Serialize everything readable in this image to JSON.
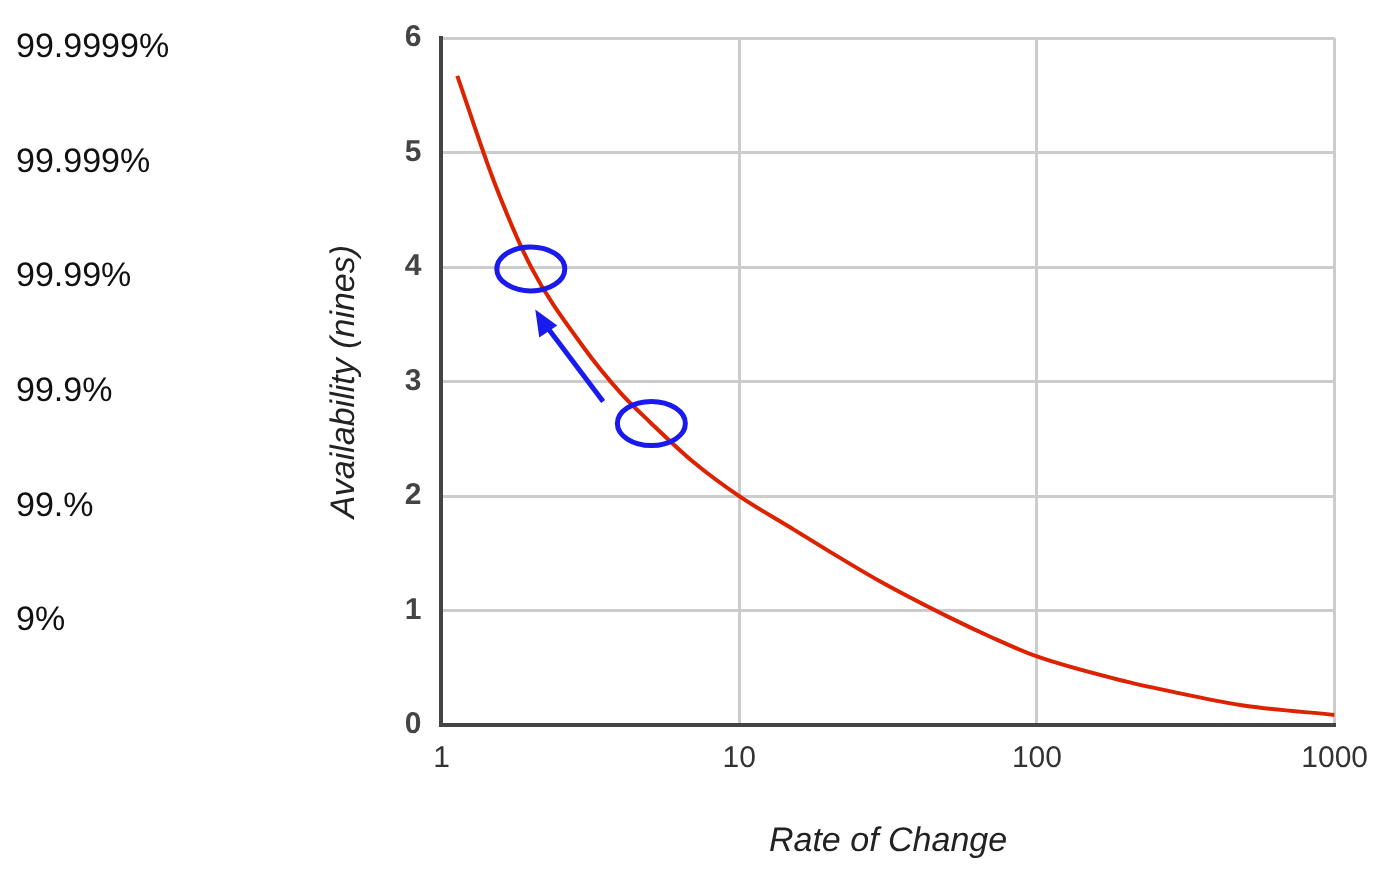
{
  "chart_data": {
    "type": "line",
    "xlabel": "Rate of Change",
    "ylabel": "Availability (nines)",
    "x": [
      1.13,
      1.5,
      2,
      3,
      4,
      5,
      7,
      10,
      15,
      20,
      30,
      50,
      70,
      100,
      200,
      300,
      500,
      1000
    ],
    "series": [
      {
        "color": "#dd2200",
        "values": [
          5.67,
          4.75,
          4.0,
          3.3,
          2.9,
          2.65,
          2.3,
          2.0,
          1.72,
          1.52,
          1.25,
          0.95,
          0.77,
          0.6,
          0.38,
          0.28,
          0.17,
          0.09
        ]
      }
    ],
    "xlim": [
      1,
      1000
    ],
    "xticks": [
      1,
      10,
      100,
      1000
    ],
    "ylim": [
      0,
      6
    ],
    "yticks": [
      0,
      1,
      2,
      3,
      4,
      5,
      6
    ],
    "log": "x",
    "grid": true,
    "legend": false,
    "marker": "none",
    "line_style": "solid",
    "annotations": [
      "99.9999%",
      "99.999%",
      "99.99%",
      "99.9%",
      "99.%",
      "9%"
    ]
  }
}
